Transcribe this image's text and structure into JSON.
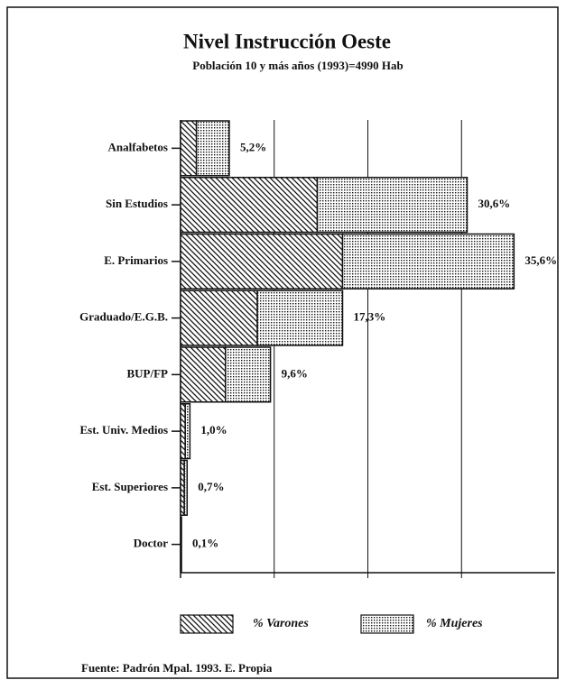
{
  "chart_data": {
    "type": "stacked-barh",
    "title": "Nivel Instrucción Oeste",
    "subtitle": "Población 10 y más años (1993)=4990 Hab",
    "categories": [
      "Analfabetos",
      "Sin Estudios",
      "E. Primarios",
      "Graduado/E.G.B.",
      "BUP/FP",
      "Est. Univ. Medios",
      "Est. Superiores",
      "Doctor"
    ],
    "series": [
      {
        "name": "% Varones",
        "pattern": "hatch",
        "values": [
          1.7,
          14.6,
          17.3,
          8.2,
          4.8,
          0.5,
          0.4,
          0.1
        ]
      },
      {
        "name": "% Mujeres",
        "pattern": "dots",
        "values": [
          3.5,
          16.0,
          18.3,
          9.1,
          4.8,
          0.5,
          0.3,
          0.0
        ]
      }
    ],
    "total_values": [
      5.2,
      30.6,
      35.6,
      17.3,
      9.6,
      1.0,
      0.7,
      0.1
    ],
    "total_labels": [
      "5,2%",
      "30,6%",
      "35,6%",
      "17,3%",
      "9,6%",
      "1,0%",
      "0,7%",
      "0,1%"
    ],
    "xlim": [
      0,
      40
    ],
    "xgrid": [
      10,
      20,
      30
    ],
    "source": "Fuente: Padrón Mpal. 1993. E. Propia"
  }
}
